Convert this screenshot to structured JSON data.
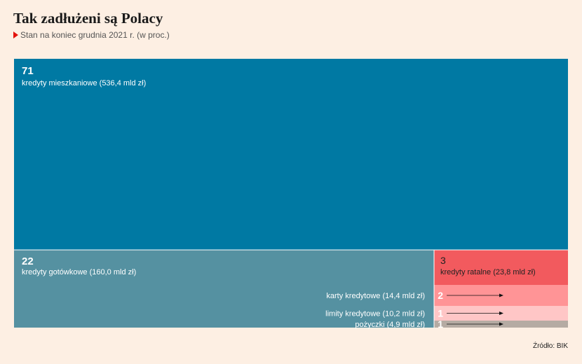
{
  "header": {
    "title": "Tak zadłużeni są Polacy",
    "subtitle": "Stan na koniec grudnia 2021 r. (w proc.)"
  },
  "source": "Źródło: BIK",
  "chart_data": {
    "type": "treemap",
    "title": "Tak zadłużeni są Polacy",
    "subtitle": "Stan na koniec grudnia 2021 r. (w proc.)",
    "unit": "proc.",
    "items": [
      {
        "id": "mieszkaniowe",
        "value": 71,
        "value_label": "71",
        "label": "kredyty mieszkaniowe (536,4 mld zł)",
        "amount_bn_pln": 536.4,
        "color": "#0079a3"
      },
      {
        "id": "gotowkowe",
        "value": 22,
        "value_label": "22",
        "label": "kredyty gotówkowe (160,0 mld zł)",
        "amount_bn_pln": 160.0,
        "color": "#5591a1"
      },
      {
        "id": "ratalne",
        "value": 3,
        "value_label": "3",
        "label": "kredyty ratalne (23,8 mld zł)",
        "amount_bn_pln": 23.8,
        "color": "#f25a5e"
      },
      {
        "id": "karty",
        "value": 2,
        "value_label": "2",
        "label": "karty kredytowe (14,4 mld zł)",
        "amount_bn_pln": 14.4,
        "color": "#ff9496"
      },
      {
        "id": "limity",
        "value": 1,
        "value_label": "1",
        "label": "limity kredytowe (10,2 mld zł)",
        "amount_bn_pln": 10.2,
        "color": "#ffc6c6"
      },
      {
        "id": "pozyczki",
        "value": 1,
        "value_label": "1",
        "label": "pożyczki (4,9 mld zł)",
        "amount_bn_pln": 4.9,
        "color": "#b5aba3"
      }
    ]
  }
}
